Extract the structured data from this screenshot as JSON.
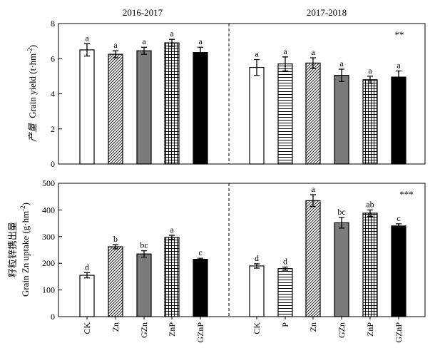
{
  "colors": {
    "axis": "#000000",
    "white": "#ffffff",
    "gray": "#7a7a7a",
    "black": "#000000"
  },
  "chart_data": [
    {
      "type": "bar",
      "panel": "top",
      "ylabel_cn": "产量",
      "ylabel_en": "Grain yield (t·hm",
      "ylabel_sup": "-2",
      "ylabel_end": ")",
      "ylim": [
        0,
        8
      ],
      "yticks": [
        0,
        2,
        4,
        6,
        8
      ],
      "groups": [
        {
          "title": "2016-2017",
          "significance": "",
          "bars": [
            {
              "category": "CK",
              "value": 6.5,
              "error": 0.35,
              "letter": "a",
              "pattern": "white"
            },
            {
              "category": "Zn",
              "value": 6.25,
              "error": 0.2,
              "letter": "a",
              "pattern": "diag"
            },
            {
              "category": "GZn",
              "value": 6.45,
              "error": 0.2,
              "letter": "a",
              "pattern": "gray"
            },
            {
              "category": "ZnP",
              "value": 6.9,
              "error": 0.2,
              "letter": "a",
              "pattern": "grid"
            },
            {
              "category": "GZnP",
              "value": 6.35,
              "error": 0.3,
              "letter": "a",
              "pattern": "black"
            }
          ]
        },
        {
          "title": "2017-2018",
          "significance": "**",
          "bars": [
            {
              "category": "CK",
              "value": 5.5,
              "error": 0.45,
              "letter": "a",
              "pattern": "white"
            },
            {
              "category": "P",
              "value": 5.7,
              "error": 0.4,
              "letter": "a",
              "pattern": "hlines"
            },
            {
              "category": "Zn",
              "value": 5.75,
              "error": 0.3,
              "letter": "a",
              "pattern": "diag"
            },
            {
              "category": "GZn",
              "value": 5.05,
              "error": 0.35,
              "letter": "a",
              "pattern": "gray"
            },
            {
              "category": "ZnP",
              "value": 4.8,
              "error": 0.2,
              "letter": "a",
              "pattern": "grid"
            },
            {
              "category": "GZnP",
              "value": 4.95,
              "error": 0.35,
              "letter": "a",
              "pattern": "black"
            }
          ]
        }
      ]
    },
    {
      "type": "bar",
      "panel": "bottom",
      "ylabel_cn": "籽粒锌携出量",
      "ylabel_en": "Grain Zn uptake (g·hm",
      "ylabel_sup": "-2",
      "ylabel_end": ")",
      "ylim": [
        0,
        500
      ],
      "yticks": [
        0,
        100,
        200,
        300,
        400,
        500
      ],
      "groups": [
        {
          "title": "",
          "significance": "",
          "bars": [
            {
              "category": "CK",
              "value": 155,
              "error": 10,
              "letter": "d",
              "pattern": "white"
            },
            {
              "category": "Zn",
              "value": 262,
              "error": 8,
              "letter": "b",
              "pattern": "diag"
            },
            {
              "category": "GZn",
              "value": 235,
              "error": 12,
              "letter": "bc",
              "pattern": "gray"
            },
            {
              "category": "ZnP",
              "value": 297,
              "error": 8,
              "letter": "a",
              "pattern": "grid"
            },
            {
              "category": "GZnP",
              "value": 215,
              "error": 4,
              "letter": "c",
              "pattern": "black"
            }
          ]
        },
        {
          "title": "",
          "significance": "***",
          "bars": [
            {
              "category": "CK",
              "value": 190,
              "error": 8,
              "letter": "d",
              "pattern": "white"
            },
            {
              "category": "P",
              "value": 180,
              "error": 6,
              "letter": "d",
              "pattern": "hlines"
            },
            {
              "category": "Zn",
              "value": 435,
              "error": 22,
              "letter": "a",
              "pattern": "diag"
            },
            {
              "category": "GZn",
              "value": 352,
              "error": 20,
              "letter": "bc",
              "pattern": "gray"
            },
            {
              "category": "ZnP",
              "value": 388,
              "error": 12,
              "letter": "ab",
              "pattern": "grid"
            },
            {
              "category": "GZnP",
              "value": 340,
              "error": 8,
              "letter": "c",
              "pattern": "black"
            }
          ]
        }
      ]
    }
  ]
}
